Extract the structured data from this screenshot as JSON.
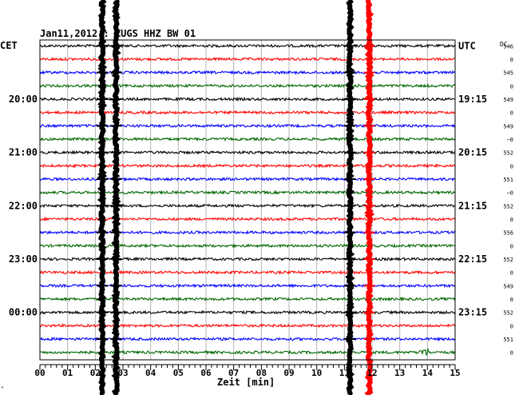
{
  "chart_data": {
    "type": "line",
    "title": "Jan11,2012 : ZUGS HHZ BW 01",
    "left_timezone": "CET",
    "right_timezone": "UTC",
    "dc_header": "DC",
    "xlabel": "Zeit [min]",
    "xlim": [
      0,
      15
    ],
    "x_ticks": [
      "00",
      "01",
      "02",
      "03",
      "04",
      "05",
      "06",
      "07",
      "08",
      "09",
      "10",
      "11",
      "12",
      "13",
      "14",
      "15"
    ],
    "left_hour_labels": [
      {
        "trace": 4,
        "label": "20:00"
      },
      {
        "trace": 8,
        "label": "21:00"
      },
      {
        "trace": 12,
        "label": "22:00"
      },
      {
        "trace": 16,
        "label": "23:00"
      },
      {
        "trace": 20,
        "label": "00:00"
      }
    ],
    "right_hour_labels": [
      {
        "trace": 0,
        "label": "UTC"
      },
      {
        "trace": 4,
        "label": "19:15"
      },
      {
        "trace": 8,
        "label": "20:15"
      },
      {
        "trace": 12,
        "label": "21:15"
      },
      {
        "trace": 16,
        "label": "22:15"
      },
      {
        "trace": 20,
        "label": "23:15"
      }
    ],
    "dc_values": [
      "546",
      "0",
      "545",
      "0",
      "549",
      "0",
      "549",
      "−0",
      "552",
      "0",
      "551",
      "−0",
      "552",
      "0",
      "556",
      "0",
      "552",
      "0",
      "549",
      "0",
      "552",
      "0",
      "551",
      "0"
    ],
    "trace_colors": [
      "#000000",
      "#ff0000",
      "#0000ff",
      "#006600"
    ],
    "trace_count": 24,
    "events": [
      {
        "x_min": 2.25,
        "color": "#000000",
        "label": "vertical burst"
      },
      {
        "x_min": 2.75,
        "color": "#000000",
        "label": "vertical burst"
      },
      {
        "x_min": 11.2,
        "color": "#000000",
        "label": "vertical burst"
      },
      {
        "x_min": 11.9,
        "color": "#ff0000",
        "label": "vertical burst"
      }
    ],
    "corner_mark": "ᴬ"
  }
}
